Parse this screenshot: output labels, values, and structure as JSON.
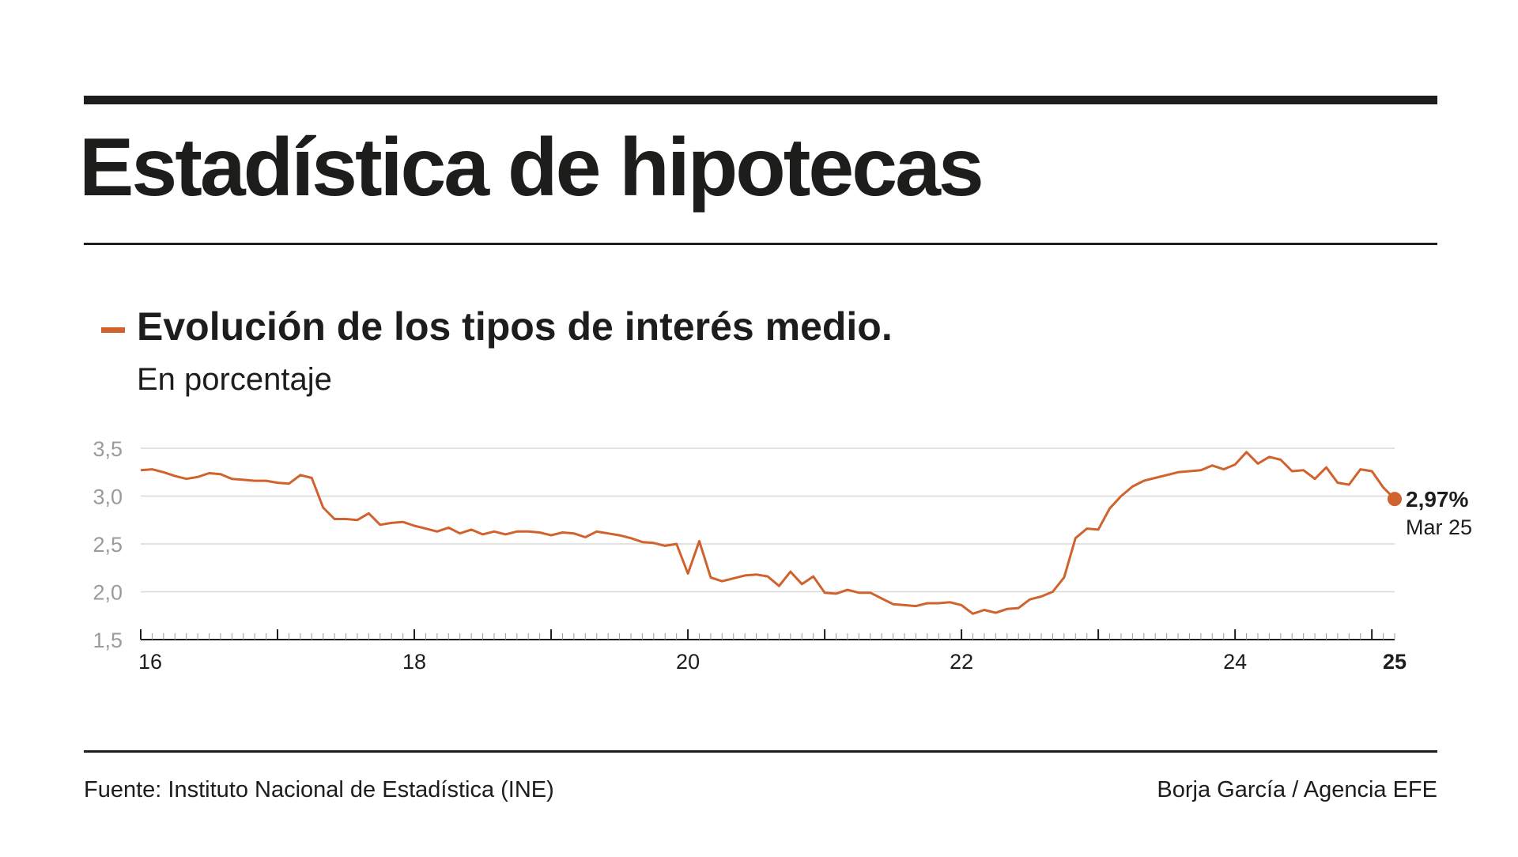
{
  "header": {
    "title": "Estadística de hipotecas"
  },
  "footer": {
    "source": "Fuente: Instituto Nacional de Estadística (INE)",
    "credit": "Borja García / Agencia EFE"
  },
  "colors": {
    "series": "#d0622e",
    "text": "#1d1d1b",
    "grid": "#d9d9d9",
    "tick_label": "#9b9b9b"
  },
  "chart_data": {
    "type": "line",
    "title": "Evolución de los tipos de interés medio.",
    "subtitle": "En porcentaje",
    "ylim": [
      1.5,
      3.5
    ],
    "y_ticks": [
      {
        "value": 1.5,
        "label": "1,5"
      },
      {
        "value": 2.0,
        "label": "2,0"
      },
      {
        "value": 2.5,
        "label": "2,5"
      },
      {
        "value": 3.0,
        "label": "3,0"
      },
      {
        "value": 3.5,
        "label": "3,5"
      }
    ],
    "x_start": "2016-01",
    "x_end": "2025-03",
    "x_ticks": [
      {
        "date": "2016-01",
        "label": "16",
        "bold": true
      },
      {
        "date": "2018-01",
        "label": "18",
        "bold": false
      },
      {
        "date": "2020-01",
        "label": "20",
        "bold": false
      },
      {
        "date": "2022-01",
        "label": "22",
        "bold": false
      },
      {
        "date": "2024-01",
        "label": "24",
        "bold": false
      },
      {
        "date": "2025-03",
        "label": "25",
        "bold": true
      }
    ],
    "grid": true,
    "series": [
      {
        "values": [
          3.27,
          3.28,
          3.25,
          3.21,
          3.18,
          3.2,
          3.24,
          3.23,
          3.18,
          3.17,
          3.16,
          3.16,
          3.14,
          3.13,
          3.22,
          3.19,
          2.88,
          2.76,
          2.76,
          2.75,
          2.82,
          2.7,
          2.72,
          2.73,
          2.69,
          2.66,
          2.63,
          2.67,
          2.61,
          2.65,
          2.6,
          2.63,
          2.6,
          2.63,
          2.63,
          2.62,
          2.59,
          2.62,
          2.61,
          2.57,
          2.63,
          2.61,
          2.59,
          2.56,
          2.52,
          2.51,
          2.48,
          2.5,
          2.19,
          2.53,
          2.15,
          2.11,
          2.14,
          2.17,
          2.18,
          2.16,
          2.06,
          2.21,
          2.08,
          2.16,
          1.99,
          1.98,
          2.02,
          1.99,
          1.99,
          1.93,
          1.87,
          1.86,
          1.85,
          1.88,
          1.88,
          1.89,
          1.86,
          1.77,
          1.81,
          1.78,
          1.82,
          1.83,
          1.92,
          1.95,
          2.0,
          2.15,
          2.56,
          2.66,
          2.65,
          2.87,
          3.0,
          3.1,
          3.16,
          3.19,
          3.22,
          3.25,
          3.26,
          3.27,
          3.32,
          3.28,
          3.33,
          3.46,
          3.34,
          3.41,
          3.38,
          3.26,
          3.27,
          3.18,
          3.3,
          3.14,
          3.12,
          3.28,
          3.26,
          3.09,
          2.97
        ]
      }
    ],
    "last_point": {
      "value_label": "2,97%",
      "date_label": "Mar 25"
    }
  }
}
